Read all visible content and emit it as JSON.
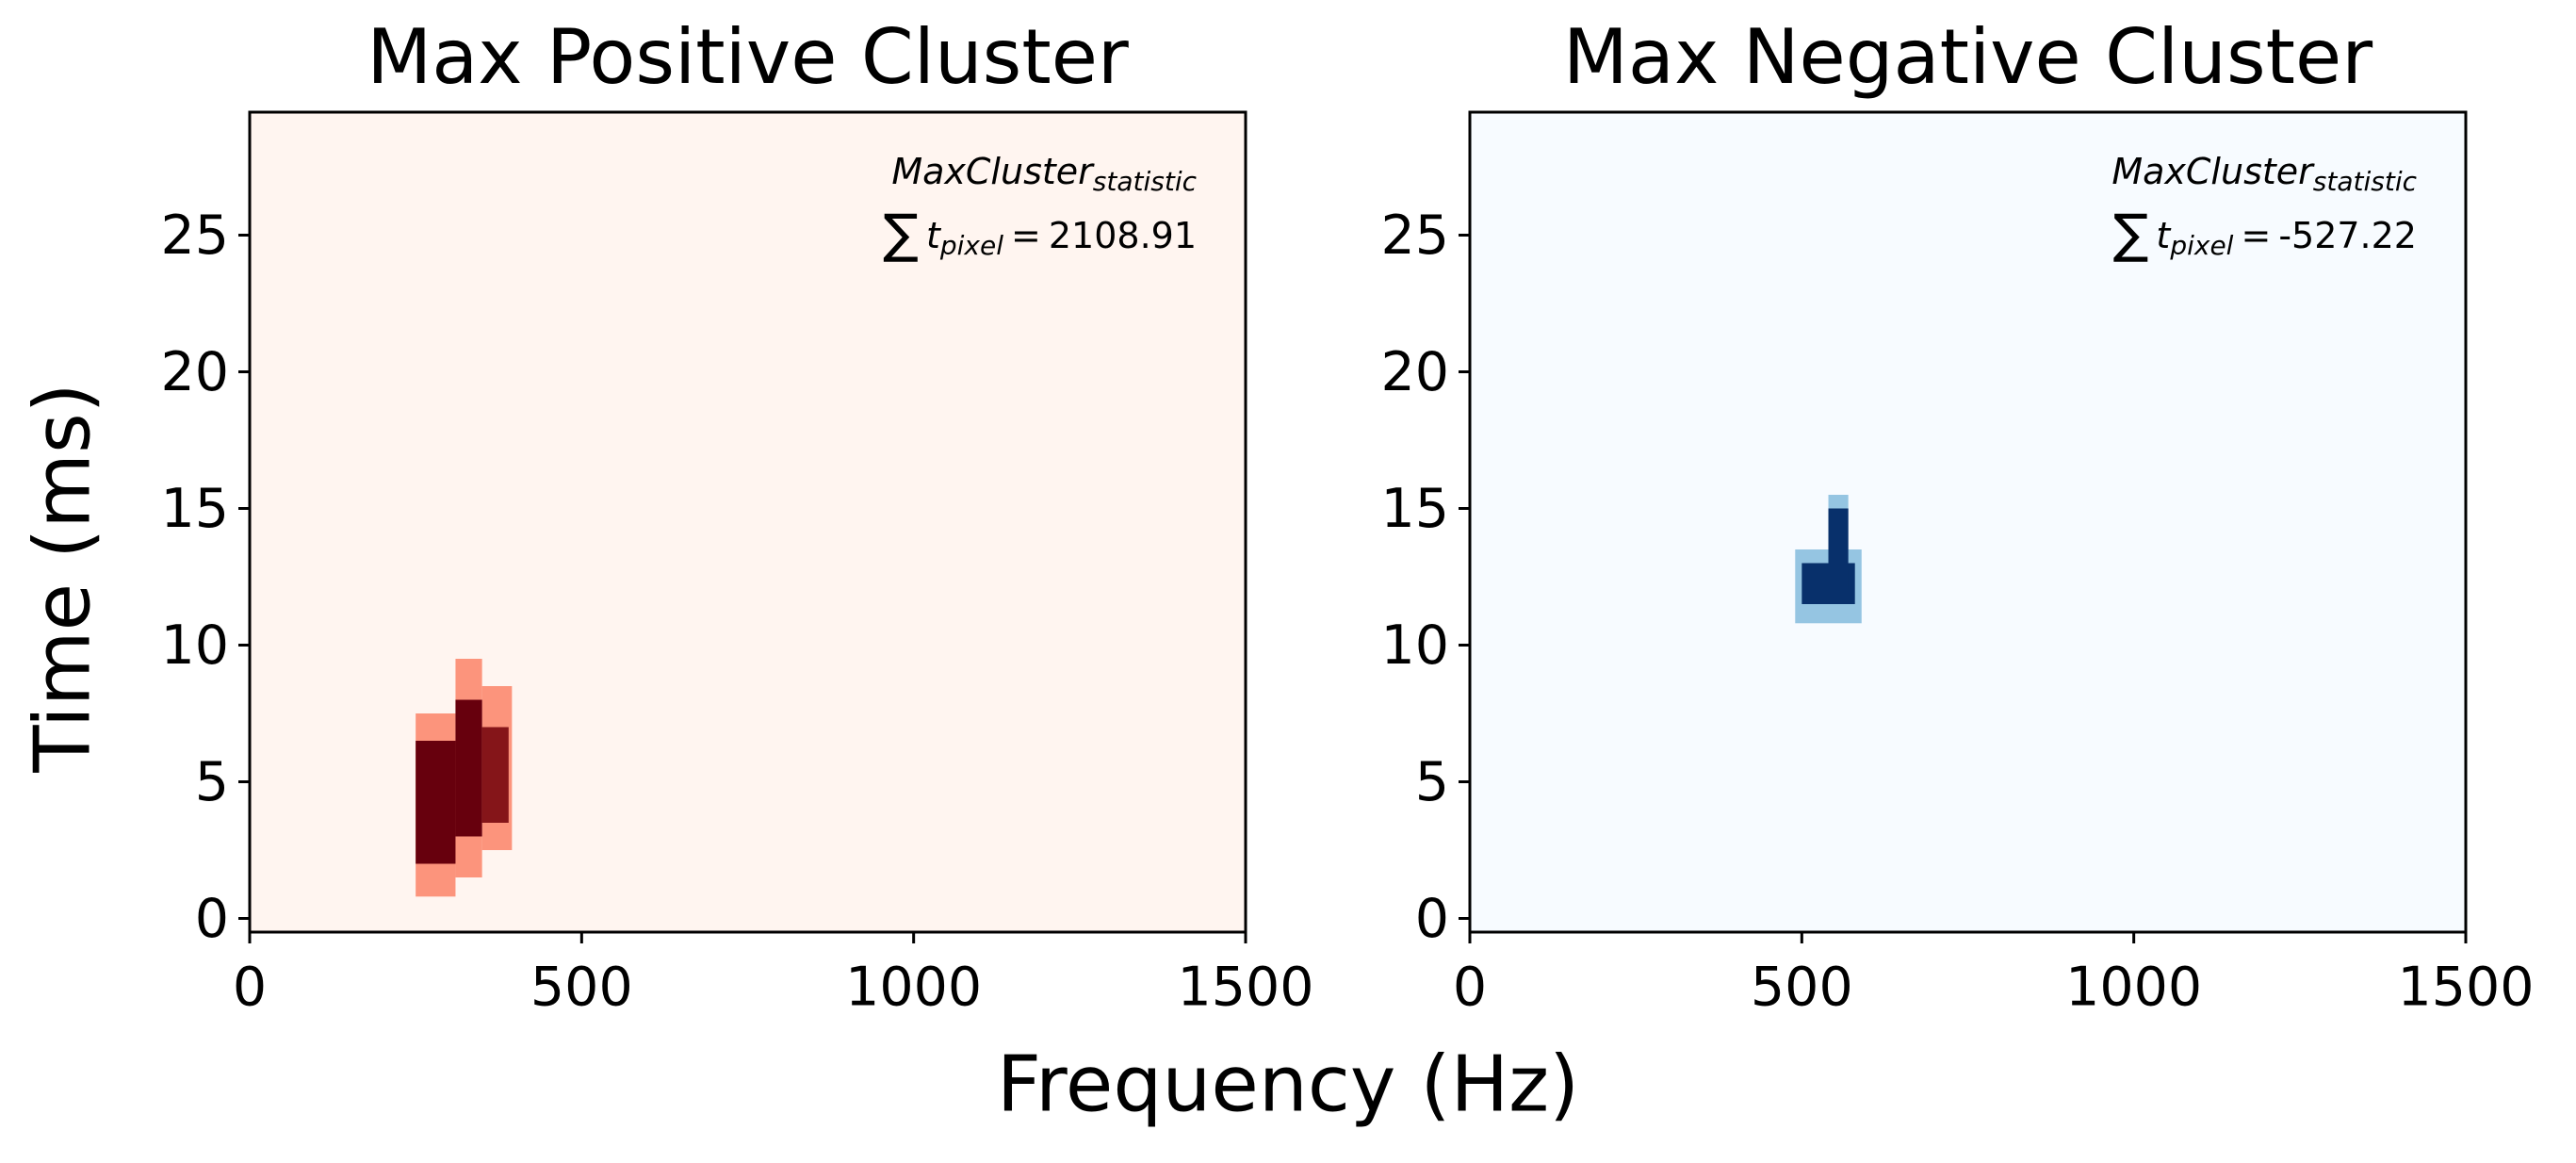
{
  "figure_labels": {
    "xlabel": "Frequency (Hz)",
    "ylabel": "Time (ms)"
  },
  "chart_data": [
    {
      "type": "heatmap",
      "title": "Max Positive Cluster",
      "colormap": [
        "#fff5f0",
        "#fb6a4a",
        "#67000d"
      ],
      "xlim": [
        0,
        1500
      ],
      "xticks": [
        0,
        500,
        1000,
        1500
      ],
      "ylim": [
        -0.5,
        29.5
      ],
      "yticks": [
        0,
        5,
        10,
        15,
        20,
        25
      ],
      "cells": [
        {
          "freq": [
            250,
            310
          ],
          "time": [
            0.8,
            7.5
          ],
          "value": 0.35
        },
        {
          "freq": [
            310,
            350
          ],
          "time": [
            1.5,
            9.5
          ],
          "value": 0.35
        },
        {
          "freq": [
            350,
            395
          ],
          "time": [
            2.5,
            8.5
          ],
          "value": 0.35
        },
        {
          "freq": [
            250,
            310
          ],
          "time": [
            2,
            6.5
          ],
          "value": 1
        },
        {
          "freq": [
            310,
            350
          ],
          "time": [
            3,
            8
          ],
          "value": 1
        },
        {
          "freq": [
            350,
            390
          ],
          "time": [
            3.5,
            7
          ],
          "value": 0.9
        }
      ],
      "annotation": {
        "name": "MaxCluster",
        "name_sub": "statistic",
        "sum": "∑",
        "var": "t",
        "var_sub": "pixel",
        "equals": "=",
        "value": 2108.91
      }
    },
    {
      "type": "heatmap",
      "title": "Max Negative Cluster",
      "colormap": [
        "#f7fbff",
        "#6baed6",
        "#08306b"
      ],
      "xlim": [
        0,
        1500
      ],
      "xticks": [
        0,
        500,
        1000,
        1500
      ],
      "ylim": [
        -0.5,
        29.5
      ],
      "yticks": [
        0,
        5,
        10,
        15,
        20,
        25
      ],
      "cells": [
        {
          "freq": [
            490,
            590
          ],
          "time": [
            10.8,
            13.5
          ],
          "value": 0.35
        },
        {
          "freq": [
            540,
            570
          ],
          "time": [
            13,
            15.5
          ],
          "value": 0.35
        },
        {
          "freq": [
            500,
            580
          ],
          "time": [
            11.5,
            13
          ],
          "value": 1
        },
        {
          "freq": [
            540,
            570
          ],
          "time": [
            12,
            15
          ],
          "value": 1
        }
      ],
      "annotation": {
        "name": "MaxCluster",
        "name_sub": "statistic",
        "sum": "∑",
        "var": "t",
        "var_sub": "pixel",
        "equals": "=",
        "value": -527.22
      }
    }
  ]
}
